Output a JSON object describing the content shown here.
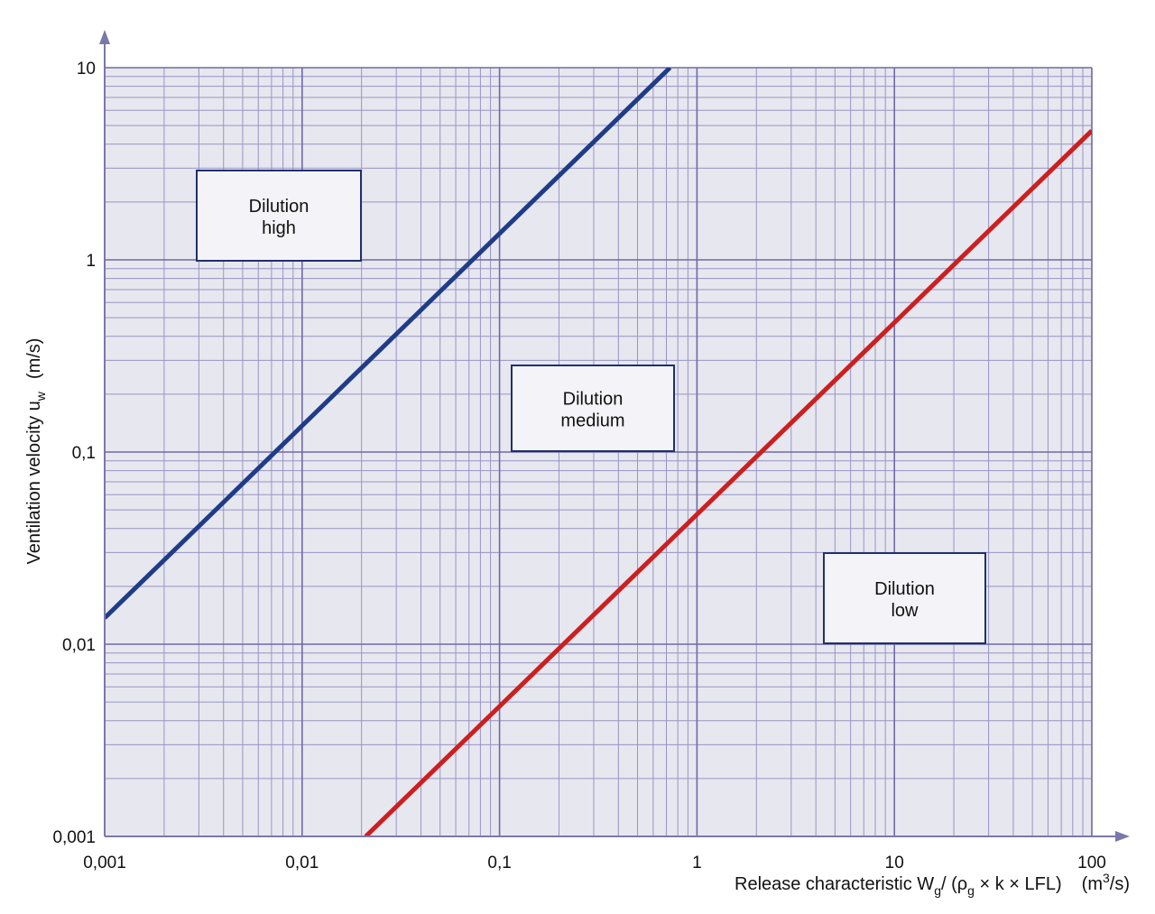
{
  "chart_data": {
    "type": "line",
    "log_x": true,
    "log_y": true,
    "grid": true,
    "xlim": [
      0.001,
      100
    ],
    "ylim": [
      0.001,
      10
    ],
    "xticks": [
      {
        "value": 0.001,
        "label": "0,001"
      },
      {
        "value": 0.01,
        "label": "0,01"
      },
      {
        "value": 0.1,
        "label": "0,1"
      },
      1,
      10,
      100
    ],
    "yticks": [
      {
        "value": 0.001,
        "label": "0,001"
      },
      {
        "value": 0.01,
        "label": "0,01"
      },
      {
        "value": 0.1,
        "label": "0,1"
      },
      1,
      10
    ],
    "ylabel": {
      "text": "Ventilation velocity u",
      "sub": "w",
      "unit": "(m/s)"
    },
    "xlabel": {
      "text": "Release characteristic W",
      "sub": "g",
      "mid": "/ (ρ",
      "sub2": "g",
      "rest": " × k × LFL)",
      "unit": "(m",
      "sup": "3",
      "unit_end": "/s)"
    },
    "series": [
      {
        "color": "#1f3c88",
        "x": [
          0.001,
          0.73
        ],
        "values": [
          0.0137,
          10
        ]
      },
      {
        "color": "#cc1f1f",
        "x": [
          0.021,
          100
        ],
        "values": [
          0.001,
          4.7
        ]
      }
    ],
    "annotations": [
      {
        "lines": [
          "Dilution",
          "high"
        ]
      },
      {
        "lines": [
          "Dilution",
          "medium"
        ]
      },
      {
        "lines": [
          "Dilution",
          "low"
        ]
      }
    ]
  }
}
